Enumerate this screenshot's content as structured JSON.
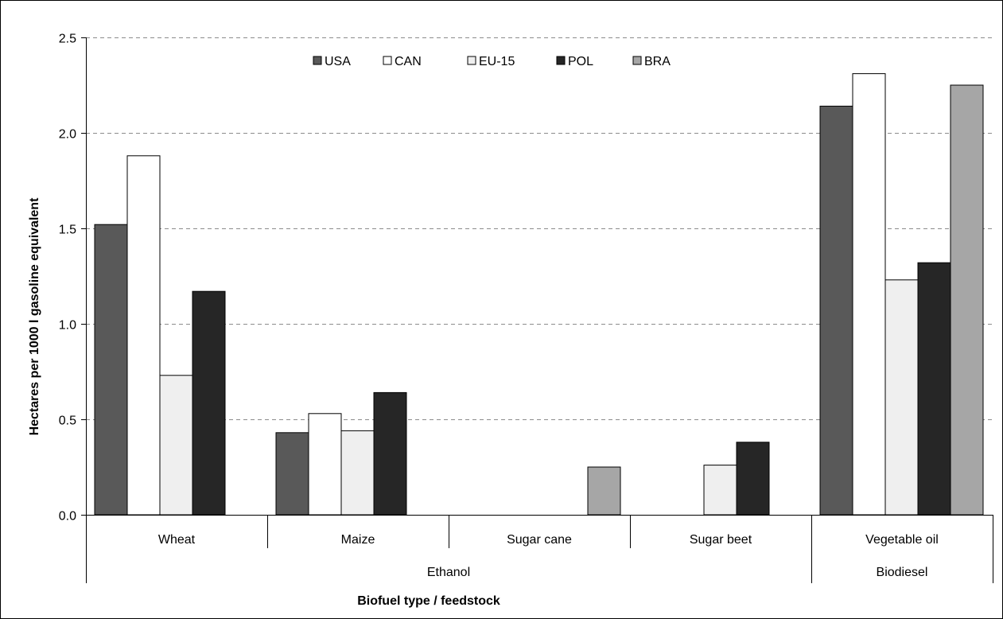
{
  "chart_data": {
    "type": "bar",
    "title": "",
    "xlabel": "Biofuel type / feedstock",
    "ylabel": "Hectares per 1000 l gasoline equivalent",
    "ylim": [
      0,
      2.5
    ],
    "yticks": [
      "0.0",
      "0.5",
      "1.0",
      "1.5",
      "2.0",
      "2.5"
    ],
    "grid": "horizontal dashed",
    "legend_position": "top-center",
    "categories": [
      "Wheat",
      "Maize",
      "Sugar cane",
      "Sugar beet",
      "Vegetable oil"
    ],
    "groups": [
      {
        "label": "Ethanol",
        "categories": [
          "Wheat",
          "Maize",
          "Sugar cane",
          "Sugar beet"
        ]
      },
      {
        "label": "Biodiesel",
        "categories": [
          "Vegetable oil"
        ]
      }
    ],
    "series": [
      {
        "name": "USA",
        "color": "#595959",
        "values": [
          1.52,
          0.43,
          null,
          null,
          2.14
        ]
      },
      {
        "name": "CAN",
        "color": "#ffffff",
        "values": [
          1.88,
          0.53,
          null,
          null,
          2.31
        ]
      },
      {
        "name": "EU-15",
        "color": "#efefef",
        "values": [
          0.73,
          0.44,
          null,
          0.26,
          1.23
        ]
      },
      {
        "name": "POL",
        "color": "#262626",
        "values": [
          1.17,
          0.64,
          null,
          0.38,
          1.32
        ]
      },
      {
        "name": "BRA",
        "color": "#a6a6a6",
        "values": [
          null,
          null,
          0.25,
          null,
          2.25
        ]
      }
    ]
  }
}
